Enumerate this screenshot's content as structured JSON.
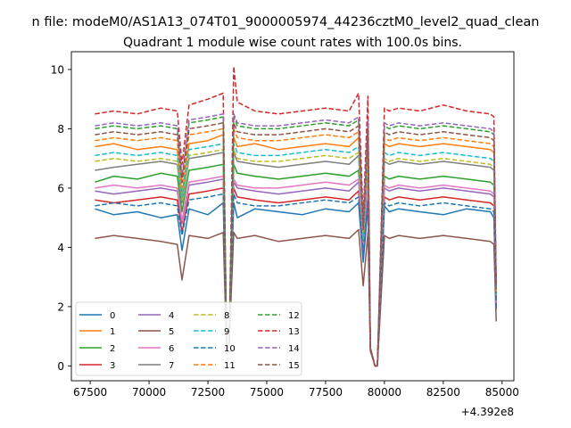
{
  "figure": {
    "suptitle": "n file: modeM0/AS1A13_074T01_9000005974_44236cztM0_level2_quad_clean",
    "title": "Quadrant 1 module wise count rates with 100.0s bins.",
    "offset_label": "+4.392e8"
  },
  "chart_data": {
    "type": "line",
    "title": "Quadrant 1 module wise count rates with 100.0s bins.",
    "x_offset": 439200000,
    "xlim": [
      66700,
      85500
    ],
    "ylim": [
      -0.5,
      10.6
    ],
    "xticks": [
      67500,
      70000,
      72500,
      75000,
      77500,
      80000,
      82500,
      85000
    ],
    "yticks": [
      0,
      2,
      4,
      6,
      8,
      10
    ],
    "grid": false,
    "legend": {
      "placement": "lower-left",
      "columns": 4
    },
    "x": [
      67700,
      68500,
      69500,
      70500,
      71200,
      71400,
      71700,
      72500,
      73150,
      73300,
      73400,
      73600,
      73750,
      74500,
      75500,
      76500,
      77500,
      78500,
      78900,
      79100,
      79300,
      79400,
      79600,
      79700,
      80000,
      80200,
      80600,
      81500,
      82500,
      83500,
      84500,
      84650,
      84750
    ],
    "series": [
      {
        "name": "0",
        "color": "#1f77b4",
        "dash": "solid",
        "values": [
          5.3,
          5.1,
          5.2,
          5.0,
          5.1,
          3.9,
          5.3,
          5.1,
          5.5,
          0.5,
          0.8,
          5.5,
          5.0,
          5.3,
          5.2,
          5.1,
          5.3,
          5.2,
          5.5,
          3.5,
          5.4,
          0.6,
          0.0,
          0.0,
          5.4,
          5.2,
          5.3,
          5.2,
          5.1,
          5.3,
          5.2,
          5.0,
          1.9
        ]
      },
      {
        "name": "1",
        "color": "#ff7f0e",
        "dash": "solid",
        "values": [
          7.4,
          7.5,
          7.3,
          7.4,
          7.3,
          5.8,
          7.5,
          7.6,
          7.8,
          0.5,
          0.8,
          7.7,
          7.4,
          7.5,
          7.3,
          7.4,
          7.5,
          7.4,
          7.7,
          4.4,
          7.6,
          0.6,
          0.0,
          0.0,
          7.5,
          7.4,
          7.5,
          7.4,
          7.5,
          7.4,
          7.3,
          7.2,
          2.5
        ]
      },
      {
        "name": "2",
        "color": "#2ca02c",
        "dash": "solid",
        "values": [
          6.2,
          6.4,
          6.3,
          6.5,
          6.4,
          5.2,
          6.6,
          6.7,
          6.8,
          0.5,
          0.8,
          6.8,
          6.5,
          6.4,
          6.3,
          6.4,
          6.5,
          6.4,
          6.6,
          4.0,
          6.5,
          0.6,
          0.0,
          0.0,
          6.4,
          6.3,
          6.4,
          6.3,
          6.4,
          6.3,
          6.2,
          6.1,
          2.2
        ]
      },
      {
        "name": "3",
        "color": "#d62728",
        "dash": "solid",
        "values": [
          5.6,
          5.5,
          5.6,
          5.7,
          5.6,
          4.5,
          5.8,
          5.9,
          6.0,
          0.5,
          0.8,
          6.0,
          5.7,
          5.6,
          5.5,
          5.6,
          5.7,
          5.6,
          5.9,
          3.8,
          5.8,
          0.6,
          0.0,
          0.0,
          5.7,
          5.6,
          5.7,
          5.6,
          5.7,
          5.6,
          5.5,
          5.4,
          2.0
        ]
      },
      {
        "name": "4",
        "color": "#9467bd",
        "dash": "solid",
        "values": [
          5.9,
          5.8,
          5.9,
          6.0,
          5.9,
          4.8,
          6.1,
          6.2,
          6.3,
          0.5,
          0.8,
          6.2,
          6.0,
          5.9,
          5.8,
          5.9,
          6.0,
          5.9,
          6.2,
          3.9,
          6.1,
          0.6,
          0.0,
          0.0,
          6.0,
          5.9,
          6.0,
          5.9,
          6.0,
          5.9,
          5.8,
          5.7,
          2.1
        ]
      },
      {
        "name": "5",
        "color": "#8c564b",
        "dash": "solid",
        "values": [
          4.3,
          4.4,
          4.3,
          4.2,
          4.1,
          2.9,
          4.4,
          4.3,
          4.5,
          0.4,
          0.7,
          4.5,
          4.3,
          4.4,
          4.2,
          4.3,
          4.4,
          4.3,
          4.6,
          2.7,
          4.5,
          0.5,
          0.0,
          0.0,
          4.4,
          4.3,
          4.4,
          4.3,
          4.4,
          4.3,
          4.2,
          4.1,
          1.5
        ]
      },
      {
        "name": "6",
        "color": "#e377c2",
        "dash": "solid",
        "values": [
          6.0,
          6.1,
          6.0,
          6.1,
          6.0,
          4.9,
          6.2,
          6.3,
          6.4,
          0.5,
          0.8,
          6.3,
          6.1,
          6.0,
          6.0,
          6.1,
          6.2,
          6.1,
          6.3,
          4.0,
          6.2,
          0.6,
          0.0,
          0.0,
          6.1,
          6.0,
          6.1,
          6.0,
          6.1,
          6.0,
          5.9,
          5.8,
          2.1
        ]
      },
      {
        "name": "7",
        "color": "#7f7f7f",
        "dash": "solid",
        "values": [
          6.6,
          6.7,
          6.8,
          6.9,
          6.8,
          5.5,
          7.0,
          7.1,
          7.2,
          0.5,
          0.8,
          7.2,
          6.9,
          6.8,
          6.7,
          6.8,
          6.9,
          6.8,
          7.1,
          4.2,
          7.0,
          0.6,
          0.0,
          0.0,
          6.9,
          6.8,
          6.9,
          6.8,
          6.9,
          6.8,
          6.7,
          6.6,
          2.3
        ]
      },
      {
        "name": "8",
        "color": "#bcbd22",
        "dash": "dashed",
        "values": [
          6.9,
          7.0,
          6.9,
          7.0,
          6.9,
          5.6,
          7.1,
          7.2,
          7.3,
          0.5,
          0.8,
          7.3,
          7.0,
          6.9,
          6.9,
          7.0,
          7.1,
          7.0,
          7.2,
          4.3,
          7.1,
          0.6,
          0.0,
          0.0,
          7.0,
          6.9,
          7.0,
          6.9,
          7.0,
          6.9,
          6.8,
          6.7,
          2.4
        ]
      },
      {
        "name": "9",
        "color": "#17becf",
        "dash": "dashed",
        "values": [
          7.1,
          7.2,
          7.1,
          7.2,
          7.1,
          5.7,
          7.3,
          7.4,
          7.5,
          0.5,
          0.8,
          7.5,
          7.2,
          7.1,
          7.1,
          7.2,
          7.3,
          7.2,
          7.4,
          4.3,
          7.3,
          0.6,
          0.0,
          0.0,
          7.2,
          7.1,
          7.2,
          7.1,
          7.2,
          7.1,
          7.0,
          6.9,
          2.4
        ]
      },
      {
        "name": "10",
        "color": "#1f77b4",
        "dash": "dashed",
        "values": [
          5.4,
          5.5,
          5.4,
          5.5,
          5.4,
          4.4,
          5.6,
          5.7,
          5.8,
          0.5,
          0.8,
          5.8,
          5.5,
          5.4,
          5.4,
          5.5,
          5.6,
          5.5,
          5.7,
          3.7,
          5.6,
          0.6,
          0.0,
          0.0,
          5.5,
          5.4,
          5.5,
          5.4,
          5.5,
          5.4,
          5.3,
          5.2,
          1.9
        ]
      },
      {
        "name": "11",
        "color": "#ff7f0e",
        "dash": "dashed",
        "values": [
          7.6,
          7.7,
          7.6,
          7.7,
          7.6,
          6.0,
          7.8,
          7.9,
          8.0,
          0.5,
          0.8,
          8.0,
          7.7,
          7.6,
          7.6,
          7.7,
          7.8,
          7.7,
          7.9,
          4.5,
          7.8,
          0.6,
          0.0,
          0.0,
          7.7,
          7.6,
          7.7,
          7.6,
          7.7,
          7.6,
          7.5,
          7.4,
          2.5
        ]
      },
      {
        "name": "12",
        "color": "#2ca02c",
        "dash": "dashed",
        "values": [
          8.0,
          8.1,
          8.0,
          8.1,
          8.0,
          6.3,
          8.2,
          8.3,
          8.4,
          0.5,
          0.8,
          8.4,
          8.1,
          8.0,
          8.0,
          8.1,
          8.2,
          8.1,
          8.3,
          4.7,
          8.2,
          0.6,
          0.0,
          0.0,
          8.1,
          8.0,
          8.1,
          8.0,
          8.1,
          8.0,
          7.9,
          7.8,
          2.6
        ]
      },
      {
        "name": "13",
        "color": "#d62728",
        "dash": "dashed",
        "values": [
          8.5,
          8.6,
          8.5,
          8.7,
          8.6,
          6.8,
          8.8,
          9.0,
          9.2,
          0.5,
          0.8,
          10.1,
          8.9,
          8.6,
          8.5,
          8.6,
          8.7,
          8.6,
          9.2,
          5.0,
          9.1,
          0.6,
          0.0,
          0.0,
          8.7,
          8.6,
          8.7,
          8.6,
          8.8,
          8.6,
          8.5,
          8.4,
          2.8
        ]
      },
      {
        "name": "14",
        "color": "#9467bd",
        "dash": "dashed",
        "values": [
          8.1,
          8.2,
          8.1,
          8.2,
          8.1,
          6.4,
          8.3,
          8.4,
          8.5,
          0.5,
          0.8,
          8.5,
          8.2,
          8.1,
          8.1,
          8.2,
          8.3,
          8.2,
          8.4,
          4.7,
          8.3,
          0.6,
          0.0,
          0.0,
          8.2,
          8.1,
          8.2,
          8.1,
          8.2,
          8.1,
          8.0,
          7.9,
          2.7
        ]
      },
      {
        "name": "15",
        "color": "#8c564b",
        "dash": "dashed",
        "values": [
          7.8,
          7.9,
          7.8,
          7.9,
          7.8,
          6.2,
          8.0,
          8.1,
          8.2,
          0.5,
          0.8,
          8.2,
          7.9,
          7.8,
          7.8,
          7.9,
          8.0,
          7.9,
          8.1,
          4.6,
          8.0,
          0.6,
          0.0,
          0.0,
          7.9,
          7.8,
          7.9,
          7.8,
          7.9,
          7.8,
          7.7,
          7.6,
          2.6
        ]
      }
    ]
  }
}
